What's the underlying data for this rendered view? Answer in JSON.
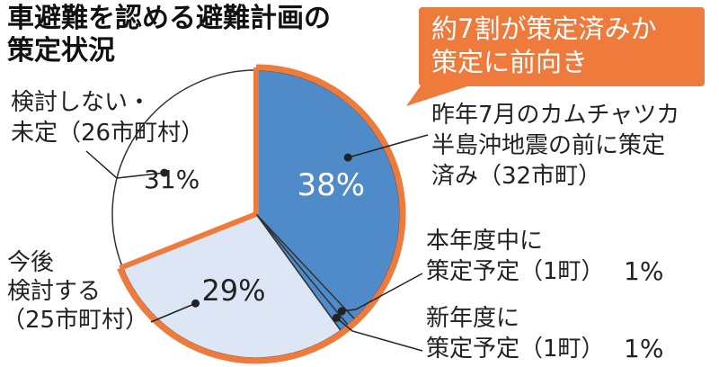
{
  "title": {
    "line1": "車避難を認める避難計画の",
    "line2": "策定状況"
  },
  "callout": {
    "line1": "約7割が策定済みか",
    "line2": "策定に前向き"
  },
  "labels": {
    "not_planned_line1": "検討しない・",
    "not_planned_line2": "未定（26市町村）",
    "not_planned_pct": "31%",
    "future_line1": "今後",
    "future_line2": "検討する",
    "future_line3": "（25市町村）",
    "done_line1": "昨年7月のカムチャツカ",
    "done_line2": "半島沖地震の前に策定",
    "done_line3": "済み（32市町）",
    "thisyear_line1": "本年度中に",
    "thisyear_line2": "策定予定（1町）",
    "thisyear_pct": "1%",
    "nextyear_line1": "新年度に",
    "nextyear_line2": "策定予定（1町）",
    "nextyear_pct": "1%"
  },
  "colors": {
    "done": "#4f8ac9",
    "future": "#dde6f5",
    "not_planned": "#ffffff",
    "accent": "#ee7a3c",
    "outline": "#222222"
  },
  "chart_data": {
    "type": "pie",
    "title": "車避難を認める避難計画の策定状況",
    "slices": [
      {
        "label": "昨年7月のカムチャツカ半島沖地震の前に策定済み（32市町）",
        "value": 38,
        "label_text": "38%"
      },
      {
        "label": "本年度中に策定予定（1町）",
        "value": 1,
        "label_text": "1%"
      },
      {
        "label": "新年度に策定予定（1町）",
        "value": 1,
        "label_text": "1%"
      },
      {
        "label": "今後検討する（25市町村）",
        "value": 29,
        "label_text": "29%"
      },
      {
        "label": "検討しない・未定（26市町村）",
        "value": 31,
        "label_text": "31%"
      }
    ],
    "annotation": "約7割が策定済みか策定に前向き"
  }
}
